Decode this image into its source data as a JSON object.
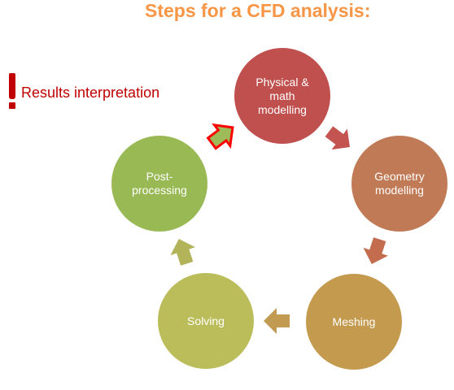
{
  "title": "Steps for a CFD analysis:",
  "legend": {
    "icon": "exclamation-icon",
    "label": "Results interpretation",
    "color": "#c00000"
  },
  "cycle": {
    "steps": [
      {
        "label": "Physical &\nmath\nmodelling",
        "color": "#c0504d"
      },
      {
        "label": "Geometry\nmodelling",
        "color": "#c07a56"
      },
      {
        "label": "Meshing",
        "color": "#c49a4f"
      },
      {
        "label": "Solving",
        "color": "#bbbd5a"
      },
      {
        "label": "Post-\nprocessing",
        "color": "#99b955"
      }
    ],
    "arrow_colors": [
      "#c45450",
      "#c46c4e",
      "#c29a52",
      "#b3b35a",
      "#9dbb59"
    ],
    "highlight_outline": "#ff0000"
  }
}
